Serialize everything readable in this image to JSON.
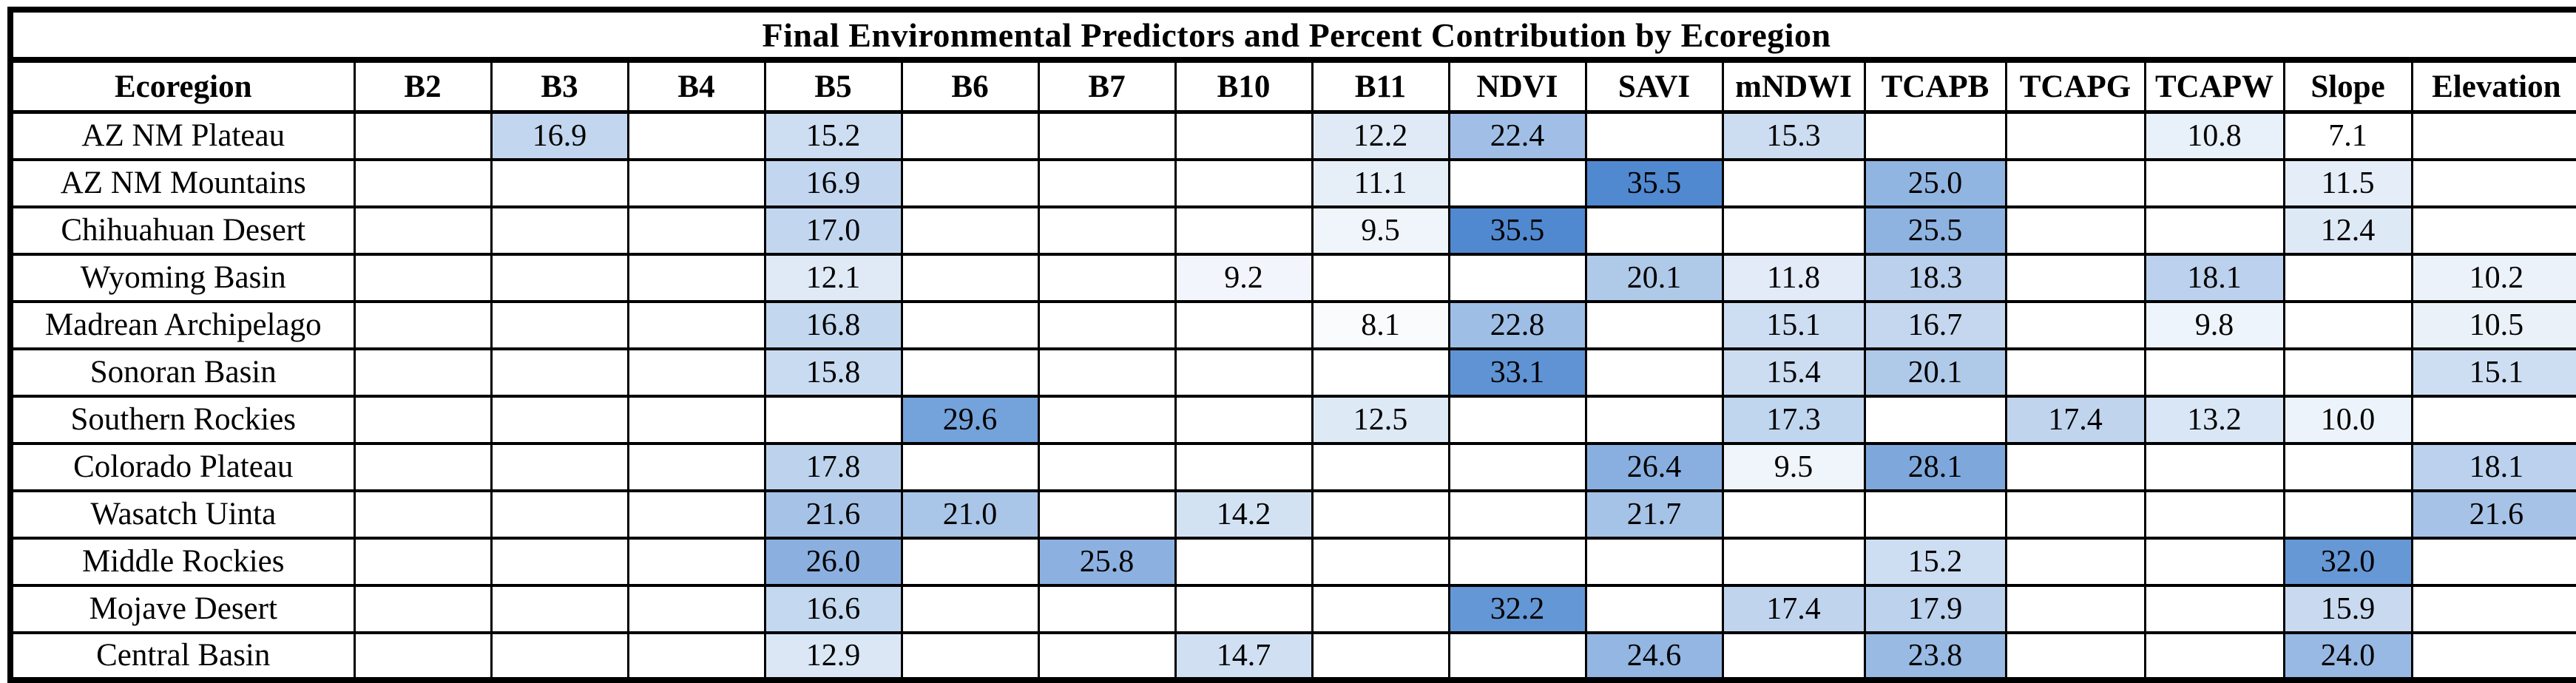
{
  "title": "Final Environmental Predictors and Percent Contribution by Ecoregion",
  "chart_data": {
    "type": "heatmap",
    "title": "Final Environmental Predictors and Percent Contribution by Ecoregion",
    "row_header_label": "Ecoregion",
    "columns": [
      "B2",
      "B3",
      "B4",
      "B5",
      "B6",
      "B7",
      "B10",
      "B11",
      "NDVI",
      "SAVI",
      "mNDWI",
      "TCAPB",
      "TCAPG",
      "TCAPW",
      "Slope",
      "Elevation"
    ],
    "rows": [
      {
        "ecoregion": "AZ NM Plateau",
        "values": {
          "B3": "16.9",
          "B5": "15.2",
          "B11": "12.2",
          "NDVI": "22.4",
          "mNDWI": "15.3",
          "TCAPW": "10.8",
          "Slope": "7.1"
        }
      },
      {
        "ecoregion": "AZ NM Mountains",
        "values": {
          "B5": "16.9",
          "B11": "11.1",
          "SAVI": "35.5",
          "TCAPB": "25.0",
          "Slope": "11.5"
        }
      },
      {
        "ecoregion": "Chihuahuan Desert",
        "values": {
          "B5": "17.0",
          "B11": "9.5",
          "NDVI": "35.5",
          "TCAPB": "25.5",
          "Slope": "12.4"
        }
      },
      {
        "ecoregion": "Wyoming Basin",
        "values": {
          "B5": "12.1",
          "B10": "9.2",
          "SAVI": "20.1",
          "mNDWI": "11.8",
          "TCAPB": "18.3",
          "TCAPW": "18.1",
          "Elevation": "10.2"
        }
      },
      {
        "ecoregion": "Madrean Archipelago",
        "values": {
          "B5": "16.8",
          "B11": "8.1",
          "NDVI": "22.8",
          "mNDWI": "15.1",
          "TCAPB": "16.7",
          "TCAPW": "9.8",
          "Elevation": "10.5"
        }
      },
      {
        "ecoregion": "Sonoran Basin",
        "values": {
          "B5": "15.8",
          "NDVI": "33.1",
          "mNDWI": "15.4",
          "TCAPB": "20.1",
          "Elevation": "15.1"
        }
      },
      {
        "ecoregion": "Southern Rockies",
        "values": {
          "B6": "29.6",
          "B11": "12.5",
          "mNDWI": "17.3",
          "TCAPG": "17.4",
          "TCAPW": "13.2",
          "Slope": "10.0"
        }
      },
      {
        "ecoregion": "Colorado Plateau",
        "values": {
          "B5": "17.8",
          "SAVI": "26.4",
          "mNDWI": "9.5",
          "TCAPB": "28.1",
          "Elevation": "18.1"
        }
      },
      {
        "ecoregion": "Wasatch Uinta",
        "values": {
          "B5": "21.6",
          "B6": "21.0",
          "B10": "14.2",
          "SAVI": "21.7",
          "Elevation": "21.6"
        }
      },
      {
        "ecoregion": "Middle Rockies",
        "values": {
          "B5": "26.0",
          "B7": "25.8",
          "TCAPB": "15.2",
          "Slope": "32.0"
        }
      },
      {
        "ecoregion": "Mojave Desert",
        "values": {
          "B5": "16.6",
          "NDVI": "32.2",
          "mNDWI": "17.4",
          "TCAPB": "17.9",
          "Slope": "15.9"
        }
      },
      {
        "ecoregion": "Central Basin",
        "values": {
          "B5": "12.9",
          "B10": "14.7",
          "SAVI": "24.6",
          "TCAPB": "23.8",
          "Slope": "24.0"
        }
      }
    ],
    "color_scale": {
      "min_value": 7.1,
      "max_value": 35.5,
      "min_color": "#FFFFFF",
      "max_color": "#5089D0"
    }
  }
}
